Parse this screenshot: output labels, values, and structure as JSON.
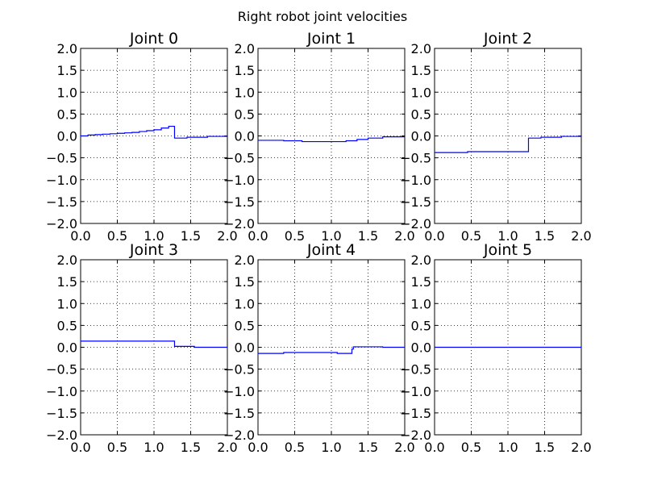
{
  "figure": {
    "title": "Right robot  joint velocities"
  },
  "colors": {
    "series": "#0000ff",
    "axes": "#000000",
    "background": "#ffffff"
  },
  "chart_data": [
    {
      "type": "line",
      "title": "Joint 0",
      "xlim": [
        0,
        2
      ],
      "ylim": [
        -2,
        2
      ],
      "grid": true,
      "xticks": [
        "0.0",
        "0.5",
        "1.0",
        "1.5",
        "2.0"
      ],
      "yticks": [
        "2.0",
        "1.5",
        "1.0",
        "0.5",
        "0.0",
        "−0.5",
        "−1.0",
        "−1.5",
        "−2.0"
      ],
      "x": [
        0.0,
        0.1,
        0.1,
        0.2,
        0.2,
        0.3,
        0.3,
        0.4,
        0.4,
        0.5,
        0.5,
        0.6,
        0.6,
        0.7,
        0.7,
        0.8,
        0.8,
        0.9,
        0.9,
        1.0,
        1.0,
        1.1,
        1.1,
        1.2,
        1.2,
        1.28,
        1.28,
        1.45,
        1.45,
        1.73,
        1.73,
        2.0
      ],
      "y": [
        0.0,
        0.0,
        0.02,
        0.02,
        0.03,
        0.03,
        0.04,
        0.04,
        0.05,
        0.05,
        0.06,
        0.06,
        0.07,
        0.07,
        0.08,
        0.08,
        0.1,
        0.1,
        0.12,
        0.12,
        0.14,
        0.14,
        0.18,
        0.18,
        0.22,
        0.22,
        -0.05,
        -0.05,
        -0.03,
        -0.03,
        -0.01,
        -0.01
      ]
    },
    {
      "type": "line",
      "title": "Joint 1",
      "xlim": [
        0,
        2
      ],
      "ylim": [
        -2,
        2
      ],
      "grid": true,
      "xticks": [
        "0.0",
        "0.5",
        "1.0",
        "1.5",
        "2.0"
      ],
      "yticks": [
        "2.0",
        "1.5",
        "1.0",
        "0.5",
        "0.0",
        "−0.5",
        "−1.0",
        "−1.5",
        "−2.0"
      ],
      "x": [
        0.0,
        0.35,
        0.35,
        0.6,
        0.6,
        1.2,
        1.2,
        1.35,
        1.35,
        1.5,
        1.5,
        1.7,
        1.7,
        2.0
      ],
      "y": [
        -0.1,
        -0.1,
        -0.11,
        -0.11,
        -0.13,
        -0.13,
        -0.11,
        -0.11,
        -0.08,
        -0.08,
        -0.05,
        -0.05,
        -0.02,
        -0.02
      ]
    },
    {
      "type": "line",
      "title": "Joint 2",
      "xlim": [
        0,
        2
      ],
      "ylim": [
        -2,
        2
      ],
      "grid": true,
      "xticks": [
        "0.0",
        "0.5",
        "1.0",
        "1.5",
        "2.0"
      ],
      "yticks": [
        "2.0",
        "1.5",
        "1.0",
        "0.5",
        "0.0",
        "−0.5",
        "−1.0",
        "−1.5",
        "−2.0"
      ],
      "x": [
        0.0,
        0.45,
        0.45,
        1.28,
        1.28,
        1.45,
        1.45,
        1.73,
        1.73,
        2.0
      ],
      "y": [
        -0.38,
        -0.38,
        -0.36,
        -0.36,
        -0.05,
        -0.05,
        -0.03,
        -0.03,
        -0.01,
        -0.01
      ]
    },
    {
      "type": "line",
      "title": "Joint 3",
      "xlim": [
        0,
        2
      ],
      "ylim": [
        -2,
        2
      ],
      "grid": true,
      "xticks": [
        "0.0",
        "0.5",
        "1.0",
        "1.5",
        "2.0"
      ],
      "yticks": [
        "2.0",
        "1.5",
        "1.0",
        "0.5",
        "0.0",
        "−0.5",
        "−1.0",
        "−1.5",
        "−2.0"
      ],
      "x": [
        0.0,
        1.28,
        1.28,
        1.55,
        1.55,
        2.0
      ],
      "y": [
        0.14,
        0.14,
        0.02,
        0.02,
        0.0,
        0.0
      ]
    },
    {
      "type": "line",
      "title": "Joint 4",
      "xlim": [
        0,
        2
      ],
      "ylim": [
        -2,
        2
      ],
      "grid": true,
      "xticks": [
        "0.0",
        "0.5",
        "1.0",
        "1.5",
        "2.0"
      ],
      "yticks": [
        "2.0",
        "1.5",
        "1.0",
        "0.5",
        "0.0",
        "−0.5",
        "−1.0",
        "−1.5",
        "−2.0"
      ],
      "x": [
        0.0,
        0.35,
        0.35,
        1.08,
        1.08,
        1.28,
        1.28,
        1.3,
        1.3,
        1.7,
        1.7,
        2.0
      ],
      "y": [
        -0.14,
        -0.14,
        -0.12,
        -0.12,
        -0.14,
        -0.14,
        -0.04,
        -0.04,
        0.01,
        0.01,
        0.0,
        0.0
      ]
    },
    {
      "type": "line",
      "title": "Joint 5",
      "xlim": [
        0,
        2
      ],
      "ylim": [
        -2,
        2
      ],
      "grid": true,
      "xticks": [
        "0.0",
        "0.5",
        "1.0",
        "1.5",
        "2.0"
      ],
      "yticks": [
        "2.0",
        "1.5",
        "1.0",
        "0.5",
        "0.0",
        "−0.5",
        "−1.0",
        "−1.5",
        "−2.0"
      ],
      "x": [
        0.0,
        2.0
      ],
      "y": [
        0.0,
        0.0
      ]
    }
  ]
}
